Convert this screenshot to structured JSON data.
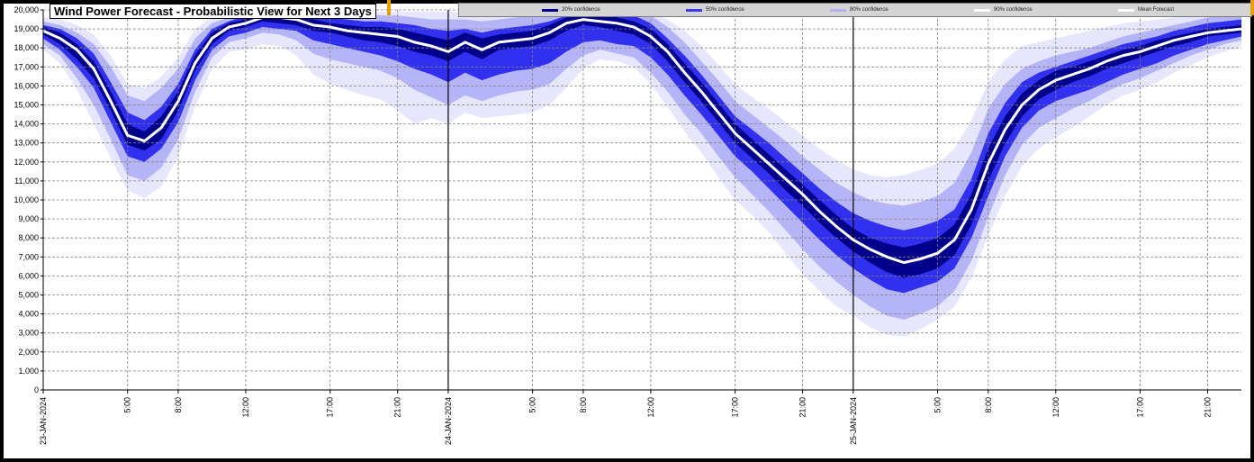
{
  "chart_data": {
    "type": "area",
    "title": "Wind Power Forecast - Probabilistic View for Next 3 Days",
    "xlabel": "",
    "ylabel": "",
    "ylim": [
      0,
      20000
    ],
    "yticks": [
      0,
      1000,
      2000,
      3000,
      4000,
      5000,
      6000,
      7000,
      8000,
      9000,
      10000,
      11000,
      12000,
      13000,
      14000,
      15000,
      16000,
      17000,
      18000,
      19000,
      20000
    ],
    "ytick_labels": [
      "0",
      "1,000",
      "2,000",
      "3,000",
      "4,000",
      "5,000",
      "6,000",
      "7,000",
      "8,000",
      "9,000",
      "10,000",
      "11,000",
      "12,000",
      "13,000",
      "14,000",
      "15,000",
      "16,000",
      "17,000",
      "18,000",
      "19,000",
      "20,000"
    ],
    "x_hours_range": [
      0,
      71
    ],
    "xticks": [
      {
        "hour": 0,
        "label": "23-JAN-2024",
        "major": true
      },
      {
        "hour": 5,
        "label": "5:00"
      },
      {
        "hour": 8,
        "label": "8:00"
      },
      {
        "hour": 12,
        "label": "12:00"
      },
      {
        "hour": 17,
        "label": "17:00"
      },
      {
        "hour": 21,
        "label": "21:00"
      },
      {
        "hour": 24,
        "label": "24-JAN-2024",
        "major": true
      },
      {
        "hour": 29,
        "label": "5:00"
      },
      {
        "hour": 32,
        "label": "8:00"
      },
      {
        "hour": 36,
        "label": "12:00"
      },
      {
        "hour": 41,
        "label": "17:00"
      },
      {
        "hour": 45,
        "label": "21:00"
      },
      {
        "hour": 48,
        "label": "25-JAN-2024",
        "major": true
      },
      {
        "hour": 53,
        "label": "5:00"
      },
      {
        "hour": 56,
        "label": "8:00"
      },
      {
        "hour": 60,
        "label": "12:00"
      },
      {
        "hour": 65,
        "label": "17:00"
      },
      {
        "hour": 69,
        "label": "21:00"
      }
    ],
    "grid": true,
    "legend_position": "top",
    "legend": [
      {
        "name": "20% confidence",
        "color": "#00008b"
      },
      {
        "name": "50% confidence",
        "color": "#3a3af5"
      },
      {
        "name": "80% confidence",
        "color": "#b0b0f5"
      },
      {
        "name": "90% confidence",
        "color": "#ffffff"
      },
      {
        "name": "Mean Forecast",
        "color": "#ffffff"
      }
    ],
    "colors": {
      "band90": "#e6e6fc",
      "band80": "#b4b4f6",
      "band50": "#3030ee",
      "band20": "#00008b",
      "mean": "#ffffff",
      "grid": "#808080"
    },
    "x": [
      0,
      1,
      2,
      3,
      4,
      5,
      6,
      7,
      8,
      9,
      10,
      11,
      12,
      13,
      14,
      15,
      16,
      17,
      18,
      19,
      20,
      21,
      22,
      23,
      24,
      25,
      26,
      27,
      28,
      29,
      30,
      31,
      32,
      33,
      34,
      35,
      36,
      37,
      38,
      39,
      40,
      41,
      42,
      43,
      44,
      45,
      46,
      47,
      48,
      49,
      50,
      51,
      52,
      53,
      54,
      55,
      56,
      57,
      58,
      59,
      60,
      61,
      62,
      63,
      64,
      65,
      66,
      67,
      68,
      69,
      70,
      71
    ],
    "series": [
      {
        "name": "Mean Forecast",
        "role": "mean",
        "values": [
          18900,
          18500,
          17900,
          16900,
          15200,
          13400,
          13100,
          13800,
          15200,
          17200,
          18500,
          19100,
          19300,
          19600,
          19600,
          19500,
          19200,
          19100,
          18900,
          18800,
          18700,
          18600,
          18300,
          18100,
          17800,
          18300,
          17900,
          18300,
          18400,
          18500,
          18800,
          19300,
          19500,
          19400,
          19300,
          19100,
          18600,
          17800,
          16700,
          15700,
          14600,
          13500,
          12700,
          11900,
          11100,
          10300,
          9400,
          8600,
          7900,
          7400,
          7000,
          6700,
          6900,
          7200,
          7900,
          9500,
          11900,
          13700,
          15000,
          15800,
          16300,
          16600,
          16900,
          17300,
          17600,
          17800,
          18100,
          18400,
          18600,
          18800,
          18900,
          19000
        ]
      },
      {
        "name": "20% confidence",
        "role": "band20",
        "lower": [
          18700,
          18200,
          17400,
          16400,
          14700,
          12900,
          12600,
          13200,
          14700,
          16800,
          18200,
          18900,
          19100,
          19400,
          19300,
          19200,
          18900,
          18800,
          18600,
          18400,
          18300,
          18100,
          17800,
          17600,
          17300,
          17800,
          17400,
          17900,
          18000,
          18100,
          18400,
          18900,
          19200,
          19100,
          18900,
          18700,
          18200,
          17300,
          16200,
          15200,
          14100,
          13000,
          12200,
          11400,
          10500,
          9700,
          8800,
          8000,
          7300,
          6700,
          6200,
          5900,
          6100,
          6400,
          7100,
          8700,
          11000,
          13000,
          14400,
          15300,
          15800,
          16200,
          16500,
          16900,
          17200,
          17500,
          17800,
          18100,
          18300,
          18600,
          18700,
          18800
        ],
        "upper": [
          19100,
          18800,
          18200,
          17300,
          15700,
          14000,
          13600,
          14400,
          15700,
          17600,
          18800,
          19300,
          19500,
          19800,
          19800,
          19700,
          19500,
          19300,
          19200,
          19100,
          19100,
          19000,
          18800,
          18600,
          18400,
          18800,
          18500,
          18700,
          18800,
          18900,
          19200,
          19600,
          19800,
          19700,
          19600,
          19400,
          19000,
          18200,
          17200,
          16200,
          15100,
          14000,
          13200,
          12400,
          11600,
          10800,
          10000,
          9200,
          8500,
          8000,
          7700,
          7500,
          7700,
          8000,
          8700,
          10300,
          12700,
          14400,
          15600,
          16300,
          16800,
          17000,
          17300,
          17600,
          17900,
          18100,
          18400,
          18600,
          18800,
          19000,
          19100,
          19200
        ]
      },
      {
        "name": "50% confidence",
        "role": "band50",
        "lower": [
          18500,
          17900,
          17000,
          15900,
          14100,
          12300,
          12000,
          12700,
          14100,
          16300,
          17900,
          18600,
          18800,
          19100,
          19000,
          18900,
          18400,
          18200,
          18000,
          17800,
          17600,
          17300,
          16900,
          16600,
          16200,
          16700,
          16300,
          16600,
          16800,
          16900,
          17200,
          17800,
          18300,
          18400,
          18200,
          18100,
          17500,
          16600,
          15500,
          14500,
          13400,
          12300,
          11500,
          10600,
          9700,
          8800,
          7900,
          7100,
          6400,
          5800,
          5300,
          5100,
          5400,
          5700,
          6400,
          8000,
          10200,
          12300,
          13800,
          14700,
          15200,
          15500,
          15800,
          16200,
          16600,
          16900,
          17200,
          17600,
          17900,
          18200,
          18400,
          18600
        ],
        "upper": [
          19200,
          19000,
          18500,
          17700,
          16200,
          14600,
          14200,
          14900,
          16100,
          17900,
          19000,
          19400,
          19700,
          19900,
          19900,
          19900,
          19700,
          19600,
          19500,
          19400,
          19400,
          19300,
          19200,
          19000,
          18900,
          19000,
          18800,
          19000,
          19100,
          19200,
          19400,
          19700,
          19900,
          19900,
          19800,
          19700,
          19300,
          18500,
          17600,
          16600,
          15500,
          14400,
          13700,
          13000,
          12200,
          11400,
          10600,
          9900,
          9300,
          8900,
          8600,
          8400,
          8600,
          8900,
          9500,
          11100,
          13500,
          15100,
          16200,
          16700,
          17000,
          17300,
          17600,
          17900,
          18200,
          18400,
          18600,
          18900,
          19100,
          19300,
          19400,
          19500
        ]
      },
      {
        "name": "80% confidence",
        "role": "band80",
        "lower": [
          18200,
          17600,
          16400,
          15000,
          13200,
          11300,
          11000,
          11700,
          13200,
          15700,
          17500,
          18300,
          18500,
          18800,
          18700,
          18400,
          17700,
          17400,
          17200,
          17000,
          16800,
          16400,
          15800,
          15400,
          15000,
          15500,
          15200,
          15500,
          15700,
          15800,
          16100,
          16900,
          17600,
          17900,
          17700,
          17500,
          16700,
          15700,
          14500,
          13500,
          12300,
          11200,
          10300,
          9400,
          8400,
          7400,
          6500,
          5700,
          5000,
          4400,
          3900,
          3700,
          4000,
          4400,
          5200,
          6800,
          9100,
          11300,
          12900,
          13800,
          14300,
          14800,
          15200,
          15700,
          16100,
          16400,
          16800,
          17200,
          17600,
          17900,
          18200,
          18400
        ],
        "upper": [
          19400,
          19200,
          18800,
          18200,
          17000,
          15500,
          15200,
          15900,
          16900,
          18500,
          19300,
          19600,
          19900,
          19900,
          19900,
          19900,
          19900,
          19800,
          19800,
          19800,
          19700,
          19700,
          19600,
          19500,
          19500,
          19500,
          19400,
          19500,
          19600,
          19700,
          19800,
          19900,
          19900,
          19900,
          19900,
          19900,
          19700,
          19100,
          18300,
          17300,
          16300,
          15200,
          14500,
          13800,
          13100,
          12300,
          11600,
          10900,
          10400,
          10000,
          9800,
          9700,
          9900,
          10200,
          10900,
          12500,
          14800,
          16100,
          16900,
          17300,
          17600,
          17800,
          18000,
          18300,
          18600,
          18800,
          19000,
          19200,
          19400,
          19600,
          19700,
          19800
        ]
      },
      {
        "name": "90% confidence",
        "role": "band90",
        "lower": [
          17900,
          17200,
          15800,
          14000,
          12200,
          10500,
          10100,
          10700,
          12300,
          14900,
          16900,
          17800,
          17900,
          18200,
          18100,
          17600,
          16600,
          16100,
          15800,
          15500,
          15300,
          14700,
          14000,
          14300,
          14000,
          14600,
          14300,
          14400,
          14500,
          14600,
          15000,
          15900,
          16900,
          17400,
          17300,
          17000,
          16100,
          14900,
          13600,
          12500,
          11200,
          10000,
          9200,
          8300,
          7200,
          6100,
          5200,
          4400,
          3900,
          3300,
          2900,
          2800,
          3200,
          3700,
          4400,
          5900,
          8100,
          10200,
          11800,
          12700,
          13300,
          13800,
          14400,
          15000,
          15500,
          15800,
          16200,
          16700,
          17100,
          17500,
          17800,
          18100
        ],
        "upper": [
          19600,
          19500,
          19200,
          18700,
          17600,
          16100,
          15900,
          16500,
          17500,
          19000,
          19600,
          19800,
          19900,
          19900,
          19900,
          19900,
          19900,
          19900,
          19900,
          19900,
          19900,
          19900,
          19900,
          19900,
          19900,
          19900,
          19900,
          19900,
          19900,
          19900,
          19900,
          19900,
          19900,
          19900,
          19900,
          19900,
          19900,
          19500,
          18900,
          18100,
          17100,
          16100,
          15400,
          14800,
          14100,
          13400,
          12700,
          12100,
          11600,
          11300,
          11200,
          11300,
          11600,
          11900,
          12700,
          14200,
          16200,
          17400,
          18100,
          18300,
          18500,
          18700,
          18900,
          19100,
          19300,
          19400,
          19500,
          19600,
          19700,
          19800,
          19800,
          19900
        ]
      }
    ]
  }
}
